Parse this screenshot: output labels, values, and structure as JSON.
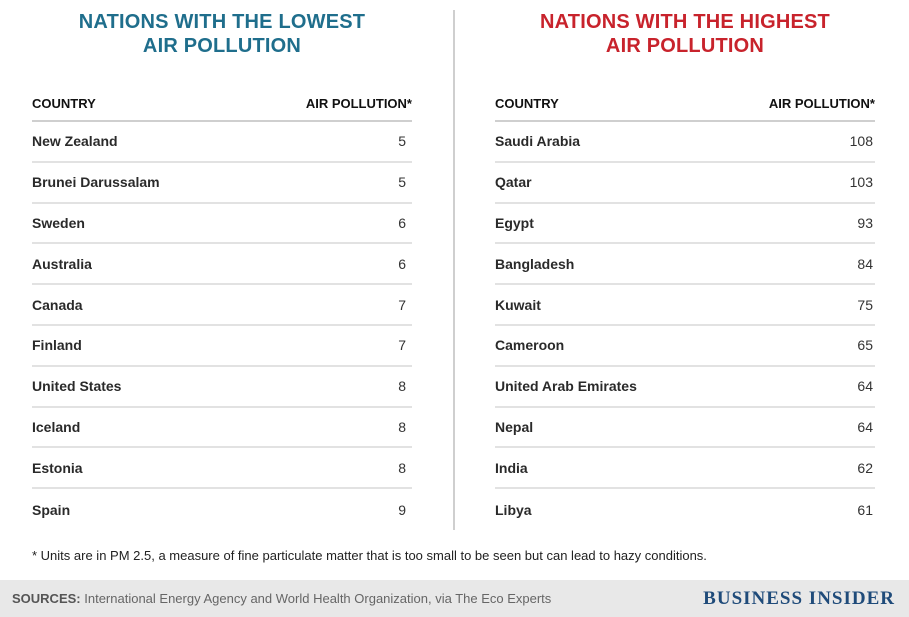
{
  "chart_data": [
    {
      "type": "table",
      "title_line1": "NATIONS WITH THE LOWEST",
      "title_line2": "AIR POLLUTION",
      "title_color": "#1f6e8c",
      "columns": [
        "COUNTRY",
        "AIR POLLUTION*"
      ],
      "rows": [
        {
          "country": "New Zealand",
          "value": 5
        },
        {
          "country": "Brunei Darussalam",
          "value": 5
        },
        {
          "country": "Sweden",
          "value": 6
        },
        {
          "country": "Australia",
          "value": 6
        },
        {
          "country": "Canada",
          "value": 7
        },
        {
          "country": "Finland",
          "value": 7
        },
        {
          "country": "United States",
          "value": 8
        },
        {
          "country": "Iceland",
          "value": 8
        },
        {
          "country": "Estonia",
          "value": 8
        },
        {
          "country": "Spain",
          "value": 9
        }
      ]
    },
    {
      "type": "table",
      "title_line1": "NATIONS WITH THE HIGHEST",
      "title_line2": "AIR POLLUTION",
      "title_color": "#c8232c",
      "columns": [
        "COUNTRY",
        "AIR POLLUTION*"
      ],
      "rows": [
        {
          "country": "Saudi Arabia",
          "value": 108
        },
        {
          "country": "Qatar",
          "value": 103
        },
        {
          "country": "Egypt",
          "value": 93
        },
        {
          "country": "Bangladesh",
          "value": 84
        },
        {
          "country": "Kuwait",
          "value": 75
        },
        {
          "country": "Cameroon",
          "value": 65
        },
        {
          "country": "United Arab Emirates",
          "value": 64
        },
        {
          "country": "Nepal",
          "value": 64
        },
        {
          "country": "India",
          "value": 62
        },
        {
          "country": "Libya",
          "value": 61
        }
      ]
    }
  ],
  "footnote": "* Units are in PM 2.5, a measure of fine particulate matter that is too small to be seen but can lead to hazy conditions.",
  "sources_label": "SOURCES:",
  "sources_text": " International Energy Agency and World Health Organization, via The Eco Experts",
  "brand": "BUSINESS INSIDER",
  "colors": {
    "brand": "#1f4b7a",
    "divider": "#cfcfcf"
  }
}
